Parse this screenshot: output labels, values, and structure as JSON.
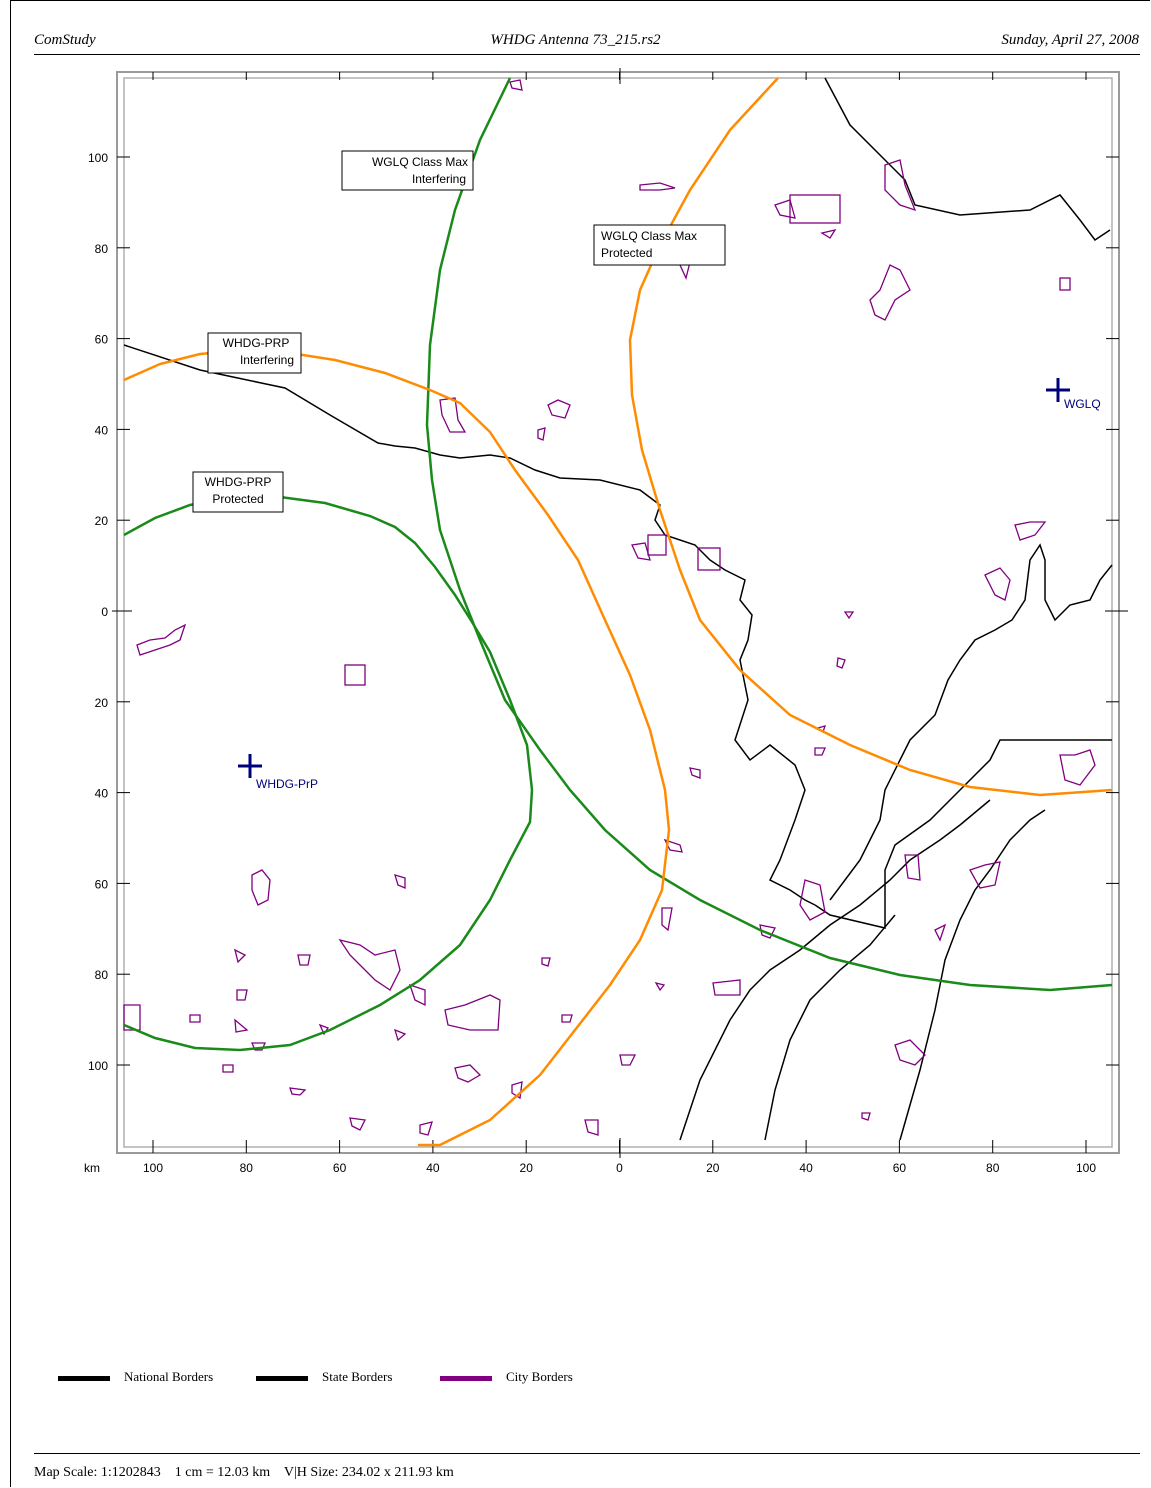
{
  "header": {
    "left": "ComStudy",
    "center": "WHDG Antenna 73_215.rs2",
    "right": "Sunday, April 27, 2008"
  },
  "map": {
    "unit_label": "km",
    "x_ticks": [
      100,
      80,
      60,
      40,
      20,
      0,
      20,
      40,
      60,
      80,
      100
    ],
    "y_ticks": [
      100,
      80,
      60,
      40,
      20,
      0,
      20,
      40,
      60,
      80,
      100
    ],
    "stations": [
      {
        "name": "WHDG-PrP",
        "color": "#00007a"
      },
      {
        "name": "WGLQ",
        "color": "#00007a"
      }
    ],
    "contour_labels": [
      {
        "line1": "WGLQ Class Max",
        "line2": "Interfering"
      },
      {
        "line1": "WGLQ Class Max",
        "line2": "Protected"
      },
      {
        "line1": "WHDG-PRP",
        "line2": "Interfering"
      },
      {
        "line1": "WHDG-PRP",
        "line2": "Protected"
      }
    ],
    "colors": {
      "contour_green": "#1a8a1a",
      "contour_orange": "#ff8c00",
      "border_black": "#000000",
      "city_purple": "#800080",
      "station_blue": "#00007a"
    }
  },
  "legend": {
    "national": "National Borders",
    "state": "State Borders",
    "city": "City Borders"
  },
  "footer": {
    "text": "Map Scale: 1:1202843    1 cm = 12.03 km    V|H Size: 234.02 x 211.93 km"
  }
}
